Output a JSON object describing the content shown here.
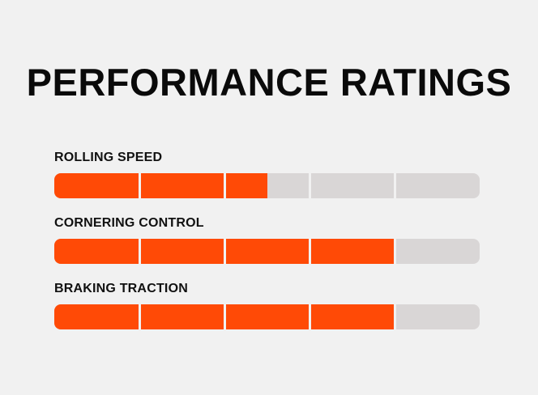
{
  "page": {
    "title": "PERFORMANCE RATINGS"
  },
  "colors": {
    "filled": "#ff4a06",
    "empty": "#d9d6d6",
    "divider": "#f1f1f1"
  },
  "ratings": [
    {
      "label": "ROLLING SPEED",
      "value": 2.5,
      "max": 5
    },
    {
      "label": "CORNERING CONTROL",
      "value": 4,
      "max": 5
    },
    {
      "label": "BRAKING TRACTION",
      "value": 4,
      "max": 5
    }
  ]
}
